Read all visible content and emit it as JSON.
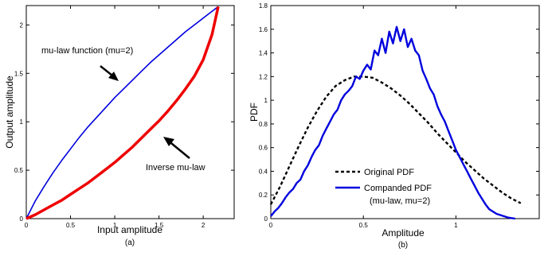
{
  "colors": {
    "series_blue": "#0000dd",
    "series_red": "#ee0000",
    "dashed": "#000000"
  },
  "chart_data": [
    {
      "type": "line",
      "subtitle": "(a)",
      "xlabel": "Input amplitude",
      "ylabel": "Output amplitude",
      "xlim": [
        0,
        2.35
      ],
      "ylim": [
        0,
        2.2
      ],
      "xticks": [
        "0",
        "0.5",
        "1",
        "1.5",
        "2"
      ],
      "xtick_values": [
        0,
        0.5,
        1,
        1.5,
        2
      ],
      "yticks": [
        "0",
        "0.5",
        "1",
        "1.5",
        "2"
      ],
      "ytick_values": [
        0,
        0.5,
        1,
        1.5,
        2
      ],
      "grid": false,
      "series": [
        {
          "name": "mu-law function (mu=2)",
          "color": "#0000dd",
          "style": "solid",
          "x": [
            0,
            0.1,
            0.2,
            0.3,
            0.4,
            0.5,
            0.6,
            0.7,
            0.8,
            0.9,
            1.0,
            1.1,
            1.2,
            1.3,
            1.4,
            1.5,
            1.6,
            1.7,
            1.8,
            1.9,
            2.0,
            2.1,
            2.17
          ],
          "y": [
            0,
            0.18,
            0.33,
            0.47,
            0.6,
            0.72,
            0.84,
            0.95,
            1.05,
            1.15,
            1.25,
            1.34,
            1.43,
            1.52,
            1.61,
            1.69,
            1.77,
            1.85,
            1.93,
            2.0,
            2.07,
            2.14,
            2.19
          ]
        },
        {
          "name": "Inverse mu-law",
          "color": "#ee0000",
          "style": "solid",
          "x": [
            0,
            0.1,
            0.2,
            0.3,
            0.4,
            0.5,
            0.6,
            0.7,
            0.8,
            0.9,
            1.0,
            1.1,
            1.2,
            1.3,
            1.4,
            1.5,
            1.6,
            1.7,
            1.8,
            1.9,
            2.0,
            2.1,
            2.17
          ],
          "y": [
            0,
            0.04,
            0.09,
            0.14,
            0.19,
            0.25,
            0.31,
            0.37,
            0.44,
            0.51,
            0.58,
            0.66,
            0.74,
            0.83,
            0.92,
            1.01,
            1.11,
            1.22,
            1.34,
            1.47,
            1.64,
            1.9,
            2.19
          ]
        }
      ],
      "annotations": [
        {
          "text": "mu-law function (mu=2)",
          "arrow_to": [
            0.98,
            1.43
          ]
        },
        {
          "text": "Inverse mu-law",
          "arrow_to": [
            1.48,
            0.97
          ]
        }
      ]
    },
    {
      "type": "line",
      "subtitle": "(b)",
      "xlabel": "Amplitude",
      "ylabel": "PDF",
      "xlim": [
        0,
        1.45
      ],
      "ylim": [
        0,
        1.8
      ],
      "xticks": [
        "0",
        "0.5",
        "1"
      ],
      "xtick_values": [
        0,
        0.5,
        1
      ],
      "yticks": [
        "0",
        "0.2",
        "0.4",
        "0.6",
        "0.8",
        "1",
        "1.2",
        "1.4",
        "1.6",
        "1.8"
      ],
      "ytick_values": [
        0,
        0.2,
        0.4,
        0.6,
        0.8,
        1.0,
        1.2,
        1.4,
        1.6,
        1.8
      ],
      "grid": false,
      "legend_position": "lower-center",
      "series": [
        {
          "name": "Original PDF",
          "color": "#000000",
          "style": "dashed",
          "x": [
            0,
            0.05,
            0.1,
            0.15,
            0.2,
            0.25,
            0.3,
            0.35,
            0.4,
            0.45,
            0.5,
            0.55,
            0.6,
            0.65,
            0.7,
            0.75,
            0.8,
            0.85,
            0.9,
            0.95,
            1.0,
            1.05,
            1.1,
            1.15,
            1.2,
            1.25,
            1.3,
            1.35
          ],
          "y": [
            0.12,
            0.27,
            0.44,
            0.61,
            0.77,
            0.91,
            1.03,
            1.12,
            1.17,
            1.2,
            1.2,
            1.19,
            1.15,
            1.1,
            1.04,
            0.97,
            0.89,
            0.81,
            0.72,
            0.64,
            0.56,
            0.48,
            0.41,
            0.34,
            0.28,
            0.22,
            0.17,
            0.13
          ]
        },
        {
          "name": "Companded PDF",
          "color": "#0000dd",
          "style": "solid",
          "x": [
            0,
            0.02,
            0.04,
            0.06,
            0.08,
            0.1,
            0.12,
            0.14,
            0.16,
            0.18,
            0.2,
            0.22,
            0.24,
            0.26,
            0.28,
            0.3,
            0.32,
            0.34,
            0.36,
            0.38,
            0.4,
            0.42,
            0.44,
            0.46,
            0.48,
            0.5,
            0.52,
            0.54,
            0.56,
            0.58,
            0.6,
            0.62,
            0.64,
            0.66,
            0.68,
            0.7,
            0.72,
            0.74,
            0.76,
            0.78,
            0.8,
            0.82,
            0.84,
            0.86,
            0.88,
            0.9,
            0.92,
            0.94,
            0.96,
            0.98,
            1.0,
            1.02,
            1.04,
            1.06,
            1.08,
            1.1,
            1.12,
            1.14,
            1.16,
            1.18,
            1.2,
            1.22,
            1.24,
            1.26,
            1.28,
            1.3,
            1.32
          ],
          "y": [
            0.02,
            0.06,
            0.09,
            0.13,
            0.18,
            0.22,
            0.25,
            0.3,
            0.33,
            0.4,
            0.45,
            0.52,
            0.58,
            0.62,
            0.7,
            0.76,
            0.82,
            0.88,
            0.92,
            1.0,
            1.05,
            1.08,
            1.12,
            1.2,
            1.18,
            1.25,
            1.3,
            1.26,
            1.42,
            1.38,
            1.52,
            1.4,
            1.58,
            1.48,
            1.62,
            1.5,
            1.6,
            1.45,
            1.52,
            1.42,
            1.38,
            1.25,
            1.18,
            1.1,
            1.05,
            0.95,
            0.88,
            0.82,
            0.74,
            0.66,
            0.58,
            0.52,
            0.46,
            0.4,
            0.34,
            0.28,
            0.22,
            0.17,
            0.12,
            0.08,
            0.06,
            0.04,
            0.03,
            0.02,
            0.01,
            0.005,
            0.0
          ]
        }
      ],
      "legend": [
        {
          "label": "Original PDF",
          "style": "dashed"
        },
        {
          "label": "Companded PDF",
          "style": "solid"
        },
        {
          "label": "(mu-law, mu=2)",
          "style": "none"
        }
      ]
    }
  ]
}
